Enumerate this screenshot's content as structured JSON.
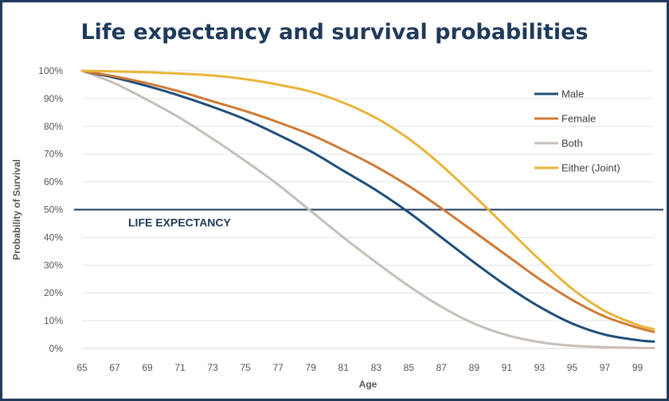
{
  "chart_data": {
    "type": "line",
    "title": "Life expectancy and survival probabilities",
    "xlabel": "Age",
    "ylabel": "Probability of Survival",
    "xlim": [
      65,
      100
    ],
    "ylim": [
      0,
      100
    ],
    "x_ticks": [
      "65",
      "67",
      "69",
      "71",
      "73",
      "75",
      "77",
      "79",
      "81",
      "83",
      "85",
      "87",
      "89",
      "91",
      "93",
      "95",
      "97",
      "99"
    ],
    "y_ticks": [
      "0%",
      "10%",
      "20%",
      "30%",
      "40%",
      "50%",
      "60%",
      "70%",
      "80%",
      "90%",
      "100%"
    ],
    "grid": true,
    "legend_position": "top-right",
    "reference_line": {
      "y": 50,
      "label": "LIFE EXPECTANCY",
      "color": "#1f3a5a"
    },
    "x": [
      65,
      67,
      69,
      71,
      73,
      75,
      77,
      79,
      81,
      83,
      85,
      87,
      89,
      91,
      93,
      95,
      97,
      99,
      100
    ],
    "series": [
      {
        "name": "Male",
        "color": "#1f4e79",
        "values": [
          100,
          97.5,
          94.5,
          91,
          87,
          82.5,
          77,
          71,
          64,
          57,
          49,
          40,
          31,
          22.5,
          15,
          9,
          5,
          3,
          2.5
        ]
      },
      {
        "name": "Female",
        "color": "#d07a35",
        "values": [
          100,
          98,
          95.5,
          92.5,
          89,
          85.5,
          81.5,
          77,
          71.5,
          65.5,
          58.5,
          50.5,
          42,
          33.5,
          25,
          17.5,
          11.5,
          7.5,
          6
        ]
      },
      {
        "name": "Both",
        "color": "#c6bfb8",
        "values": [
          100,
          95.5,
          89.5,
          83,
          75.5,
          67.5,
          59,
          49.5,
          40,
          31,
          22.5,
          15,
          9,
          4.8,
          2.3,
          1,
          0.5,
          0.2,
          0.2
        ]
      },
      {
        "name": "Either (Joint)",
        "color": "#e8b53a",
        "values": [
          100,
          99.8,
          99.5,
          99,
          98.3,
          97,
          95,
          92.5,
          88.5,
          83,
          75.5,
          66,
          55,
          43.5,
          32,
          21.5,
          13.5,
          8.5,
          7
        ]
      }
    ]
  }
}
